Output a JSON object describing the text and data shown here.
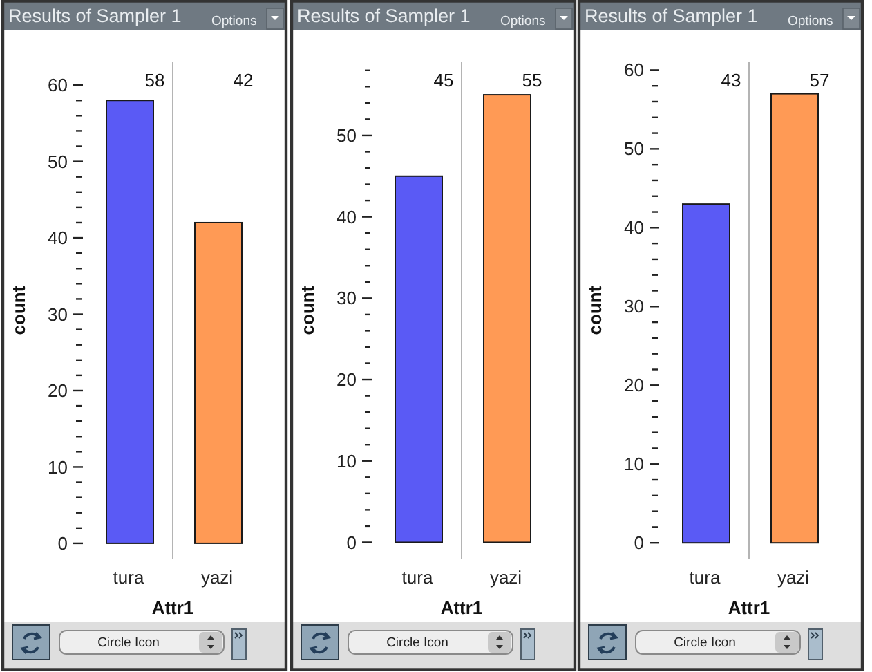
{
  "chart_data": [
    {
      "type": "bar",
      "title": "Results of Sampler 1",
      "annotations": [
        "Options",
        "Circle Icon",
        "58",
        "42"
      ],
      "xlabel": "Attr1",
      "ylabel": "count",
      "categories": [
        "tura",
        "yazi"
      ],
      "values": [
        58,
        42
      ],
      "colors": [
        "#5a5af5",
        "#ff9a55"
      ],
      "ylim": [
        -2,
        63
      ],
      "yticks": [
        0,
        {
          "value": 2,
          "label": null
        },
        {
          "value": 4,
          "label": null
        },
        {
          "value": 6,
          "label": null
        },
        {
          "value": 8,
          "label": null
        },
        10,
        {
          "value": 12,
          "label": null
        },
        {
          "value": 14,
          "label": null
        },
        {
          "value": 16,
          "label": null
        },
        {
          "value": 18,
          "label": null
        },
        20,
        {
          "value": 22,
          "label": null
        },
        {
          "value": 24,
          "label": null
        },
        {
          "value": 26,
          "label": null
        },
        {
          "value": 28,
          "label": null
        },
        30,
        {
          "value": 32,
          "label": null
        },
        {
          "value": 34,
          "label": null
        },
        {
          "value": 36,
          "label": null
        },
        {
          "value": 38,
          "label": null
        },
        40,
        {
          "value": 42,
          "label": null
        },
        {
          "value": 44,
          "label": null
        },
        {
          "value": 46,
          "label": null
        },
        {
          "value": 48,
          "label": null
        },
        50,
        {
          "value": 52,
          "label": null
        },
        {
          "value": 54,
          "label": null
        },
        {
          "value": 56,
          "label": null
        },
        {
          "value": 58,
          "label": null
        },
        60
      ]
    },
    {
      "type": "bar",
      "title": "Results of Sampler 1",
      "annotations": [
        "Options",
        "Circle Icon",
        "45",
        "55"
      ],
      "xlabel": "Attr1",
      "ylabel": "count",
      "categories": [
        "tura",
        "yazi"
      ],
      "values": [
        45,
        55
      ],
      "colors": [
        "#5a5af5",
        "#ff9a55"
      ],
      "ylim": [
        -2,
        59
      ],
      "yticks": [
        0,
        {
          "value": 2,
          "label": null
        },
        {
          "value": 4,
          "label": null
        },
        {
          "value": 6,
          "label": null
        },
        {
          "value": 8,
          "label": null
        },
        10,
        {
          "value": 12,
          "label": null
        },
        {
          "value": 14,
          "label": null
        },
        {
          "value": 16,
          "label": null
        },
        {
          "value": 18,
          "label": null
        },
        20,
        {
          "value": 22,
          "label": null
        },
        {
          "value": 24,
          "label": null
        },
        {
          "value": 26,
          "label": null
        },
        {
          "value": 28,
          "label": null
        },
        30,
        {
          "value": 32,
          "label": null
        },
        {
          "value": 34,
          "label": null
        },
        {
          "value": 36,
          "label": null
        },
        {
          "value": 38,
          "label": null
        },
        40,
        {
          "value": 42,
          "label": null
        },
        {
          "value": 44,
          "label": null
        },
        {
          "value": 46,
          "label": null
        },
        {
          "value": 48,
          "label": null
        },
        50,
        {
          "value": 52,
          "label": null
        },
        {
          "value": 54,
          "label": null
        },
        {
          "value": 56,
          "label": null
        },
        {
          "value": 58,
          "label": null
        }
      ]
    },
    {
      "type": "bar",
      "title": "Results of Sampler 1",
      "annotations": [
        "Options",
        "Circle Icon",
        "43",
        "57"
      ],
      "xlabel": "Attr1",
      "ylabel": "count",
      "categories": [
        "tura",
        "yazi"
      ],
      "values": [
        43,
        57
      ],
      "colors": [
        "#5a5af5",
        "#ff9a55"
      ],
      "ylim": [
        -2,
        61
      ],
      "yticks": [
        0,
        {
          "value": 2,
          "label": null
        },
        {
          "value": 4,
          "label": null
        },
        {
          "value": 6,
          "label": null
        },
        {
          "value": 8,
          "label": null
        },
        10,
        {
          "value": 12,
          "label": null
        },
        {
          "value": 14,
          "label": null
        },
        {
          "value": 16,
          "label": null
        },
        {
          "value": 18,
          "label": null
        },
        20,
        {
          "value": 22,
          "label": null
        },
        {
          "value": 24,
          "label": null
        },
        {
          "value": 26,
          "label": null
        },
        {
          "value": 28,
          "label": null
        },
        30,
        {
          "value": 32,
          "label": null
        },
        {
          "value": 34,
          "label": null
        },
        {
          "value": 36,
          "label": null
        },
        {
          "value": 38,
          "label": null
        },
        40,
        {
          "value": 42,
          "label": null
        },
        {
          "value": 44,
          "label": null
        },
        {
          "value": 46,
          "label": null
        },
        {
          "value": 48,
          "label": null
        },
        50,
        {
          "value": 52,
          "label": null
        },
        {
          "value": 54,
          "label": null
        },
        {
          "value": 56,
          "label": null
        },
        {
          "value": 58,
          "label": null
        },
        60
      ]
    }
  ]
}
